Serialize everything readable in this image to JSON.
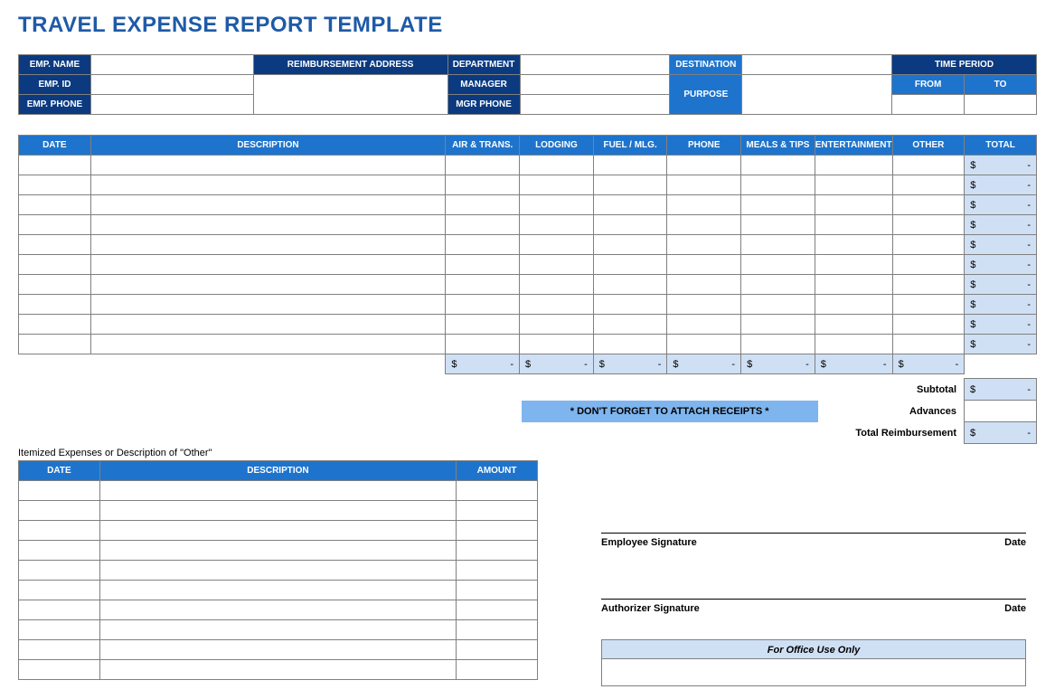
{
  "title": "TRAVEL EXPENSE REPORT TEMPLATE",
  "colors": {
    "title": "#1e5aa8",
    "hdr_dark": "#0b3a80",
    "hdr_blue": "#1e74cc",
    "light_fill": "#cfe0f5",
    "receipt_fill": "#7fb5ee",
    "border": "#808080",
    "bg": "#ffffff"
  },
  "info": {
    "emp_name": "EMP. NAME",
    "emp_id": "EMP. ID",
    "emp_phone": "EMP. PHONE",
    "reimb_addr": "REIMBURSEMENT ADDRESS",
    "department": "DEPARTMENT",
    "manager": "MANAGER",
    "mgr_phone": "MGR PHONE",
    "destination": "DESTINATION",
    "purpose": "PURPOSE",
    "time_period": "TIME PERIOD",
    "from": "FROM",
    "to": "TO"
  },
  "main_headers": {
    "date": "DATE",
    "description": "DESCRIPTION",
    "air": "AIR & TRANS.",
    "lodging": "LODGING",
    "fuel": "FUEL / MLG.",
    "phone": "PHONE",
    "meals": "MEALS & TIPS",
    "entertainment": "ENTERTAINMENT",
    "other": "OTHER",
    "total": "TOTAL"
  },
  "main_rows": 10,
  "row_total": {
    "currency": "$",
    "value": "-"
  },
  "col_sums": {
    "currency": "$",
    "value": "-"
  },
  "summary": {
    "receipt_note": "* DON'T FORGET TO ATTACH RECEIPTS *",
    "subtotal": "Subtotal",
    "advances": "Advances",
    "total_reimb": "Total Reimbursement",
    "sub_val": {
      "currency": "$",
      "value": "-"
    },
    "total_val": {
      "currency": "$",
      "value": "-"
    }
  },
  "itemized": {
    "note": "Itemized Expenses or Description of \"Other\"",
    "headers": {
      "date": "DATE",
      "description": "DESCRIPTION",
      "amount": "AMOUNT"
    },
    "rows": 10
  },
  "signatures": {
    "emp": "Employee Signature",
    "auth": "Authorizer Signature",
    "date": "Date",
    "office": "For Office Use Only"
  }
}
